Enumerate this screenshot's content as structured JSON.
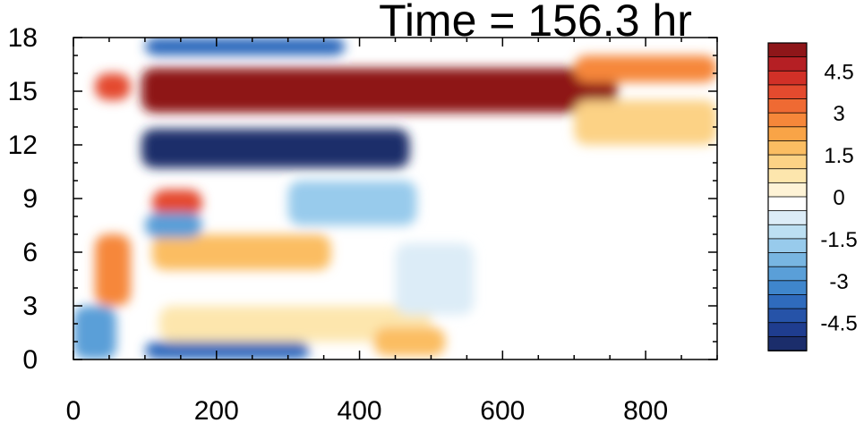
{
  "title": "Time = 156.3 hr",
  "chart_data": {
    "type": "heatmap",
    "title": "Time = 156.3 hr",
    "xlabel": "",
    "ylabel": "",
    "xlim": [
      0,
      900
    ],
    "ylim": [
      0,
      18
    ],
    "x_ticks": [
      "0",
      "200",
      "400",
      "600",
      "800"
    ],
    "y_ticks": [
      "0",
      "3",
      "6",
      "9",
      "12",
      "15",
      "18"
    ],
    "x_tick_values": [
      0,
      200,
      400,
      600,
      800
    ],
    "y_tick_values": [
      0,
      3,
      6,
      9,
      12,
      15,
      18
    ],
    "colorbar": {
      "levels": [
        -5.5,
        -5,
        -4.5,
        -4,
        -3.5,
        -3,
        -2.5,
        -2,
        -1.5,
        -1,
        -0.5,
        0.5,
        1,
        1.5,
        2,
        2.5,
        3,
        3.5,
        4,
        4.5,
        5,
        5.5
      ],
      "colors": [
        "#1b2d6b",
        "#1f3d8f",
        "#2653a8",
        "#2f6bbd",
        "#3f86cc",
        "#5a9fd8",
        "#78b6e2",
        "#98cbec",
        "#bcdff2",
        "#dcecf7",
        "#ffffff",
        "#fef3d6",
        "#fde6ad",
        "#fcd285",
        "#fbbd62",
        "#f9a447",
        "#f6873a",
        "#ef6a33",
        "#e44a2e",
        "#d13027",
        "#b51f24",
        "#8e1619"
      ],
      "labels": [
        "4.5",
        "3",
        "1.5",
        "0",
        "-1.5",
        "-3",
        "-4.5"
      ],
      "label_values": [
        4.5,
        3,
        1.5,
        0,
        -1.5,
        -3,
        -4.5
      ]
    },
    "features": [
      {
        "x": [
          95,
          760
        ],
        "y": [
          13.8,
          16.3
        ],
        "value": 6
      },
      {
        "x": [
          95,
          470
        ],
        "y": [
          10.7,
          12.9
        ],
        "value": -6
      },
      {
        "x": [
          100,
          380
        ],
        "y": [
          17.0,
          18.0
        ],
        "value": -4
      },
      {
        "x": [
          700,
          900
        ],
        "y": [
          15.5,
          17.0
        ],
        "value": 3
      },
      {
        "x": [
          700,
          900
        ],
        "y": [
          12.0,
          14.5
        ],
        "value": 1.5
      },
      {
        "x": [
          30,
          80
        ],
        "y": [
          14.5,
          16.0
        ],
        "value": 4
      },
      {
        "x": [
          30,
          80
        ],
        "y": [
          3.0,
          7.0
        ],
        "value": 3
      },
      {
        "x": [
          0,
          60
        ],
        "y": [
          0.0,
          3.0
        ],
        "value": -3
      },
      {
        "x": [
          110,
          180
        ],
        "y": [
          8.0,
          9.5
        ],
        "value": 4
      },
      {
        "x": [
          110,
          360
        ],
        "y": [
          5.0,
          7.0
        ],
        "value": 2
      },
      {
        "x": [
          100,
          180
        ],
        "y": [
          6.8,
          8.2
        ],
        "value": -3
      },
      {
        "x": [
          100,
          330
        ],
        "y": [
          0.0,
          1.0
        ],
        "value": -4
      },
      {
        "x": [
          300,
          480
        ],
        "y": [
          7.5,
          10.0
        ],
        "value": -2
      },
      {
        "x": [
          120,
          500
        ],
        "y": [
          1.0,
          3.0
        ],
        "value": 1
      },
      {
        "x": [
          420,
          520
        ],
        "y": [
          0.2,
          1.8
        ],
        "value": 2
      },
      {
        "x": [
          450,
          560
        ],
        "y": [
          2.5,
          6.5
        ],
        "value": -1
      }
    ]
  }
}
